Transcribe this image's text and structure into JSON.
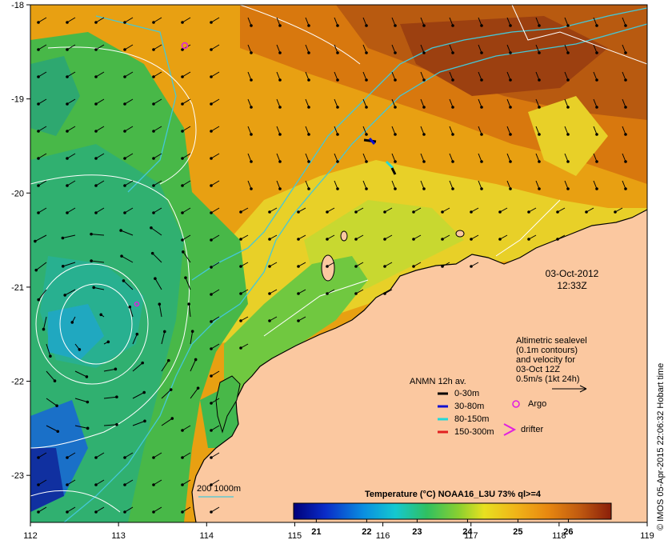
{
  "map": {
    "lon_range": [
      112,
      119
    ],
    "lat_range": [
      -23.5,
      -18
    ],
    "lon_ticks": [
      "112",
      "113",
      "114",
      "115",
      "116",
      "117",
      "118",
      "119"
    ],
    "lat_ticks": [
      "-18",
      "-19",
      "-20",
      "-21",
      "-22",
      "-23"
    ],
    "timestamp_date": "03-Oct-2012",
    "timestamp_time": "12:33Z",
    "altimetry_note": [
      "Altimetric sealevel",
      "(0.1m contours)",
      "and velocity for",
      "03-Oct 12Z",
      "0.5m/s (1kt 24h)"
    ],
    "anmn_title": "ANMN 12h av.",
    "anmn_legend": [
      {
        "label": "0-30m",
        "color": "#000000"
      },
      {
        "label": "30-80m",
        "color": "#1010d0"
      },
      {
        "label": "80-150m",
        "color": "#22d8d8"
      },
      {
        "label": "150-300m",
        "color": "#e02020"
      }
    ],
    "argo_label": "Argo",
    "drifter_label": "drifter",
    "isobath_label": "200  1000m",
    "colorbar_title": "Temperature (°C) NOAA16_L3U 73% ql>=4",
    "colorbar_ticks": [
      "21",
      "22",
      "23",
      "24",
      "25",
      "26"
    ],
    "colorbar_range": [
      20.55,
      26.85
    ],
    "colors": {
      "land": "#fbc8a0",
      "argo": "#e020e0",
      "drifter": "#e020e0",
      "isobath": "#44c8d8",
      "contour": "#ffffff"
    },
    "credit": "© IMOS 05-Apr-2015 22:06:32 Hobart time"
  }
}
